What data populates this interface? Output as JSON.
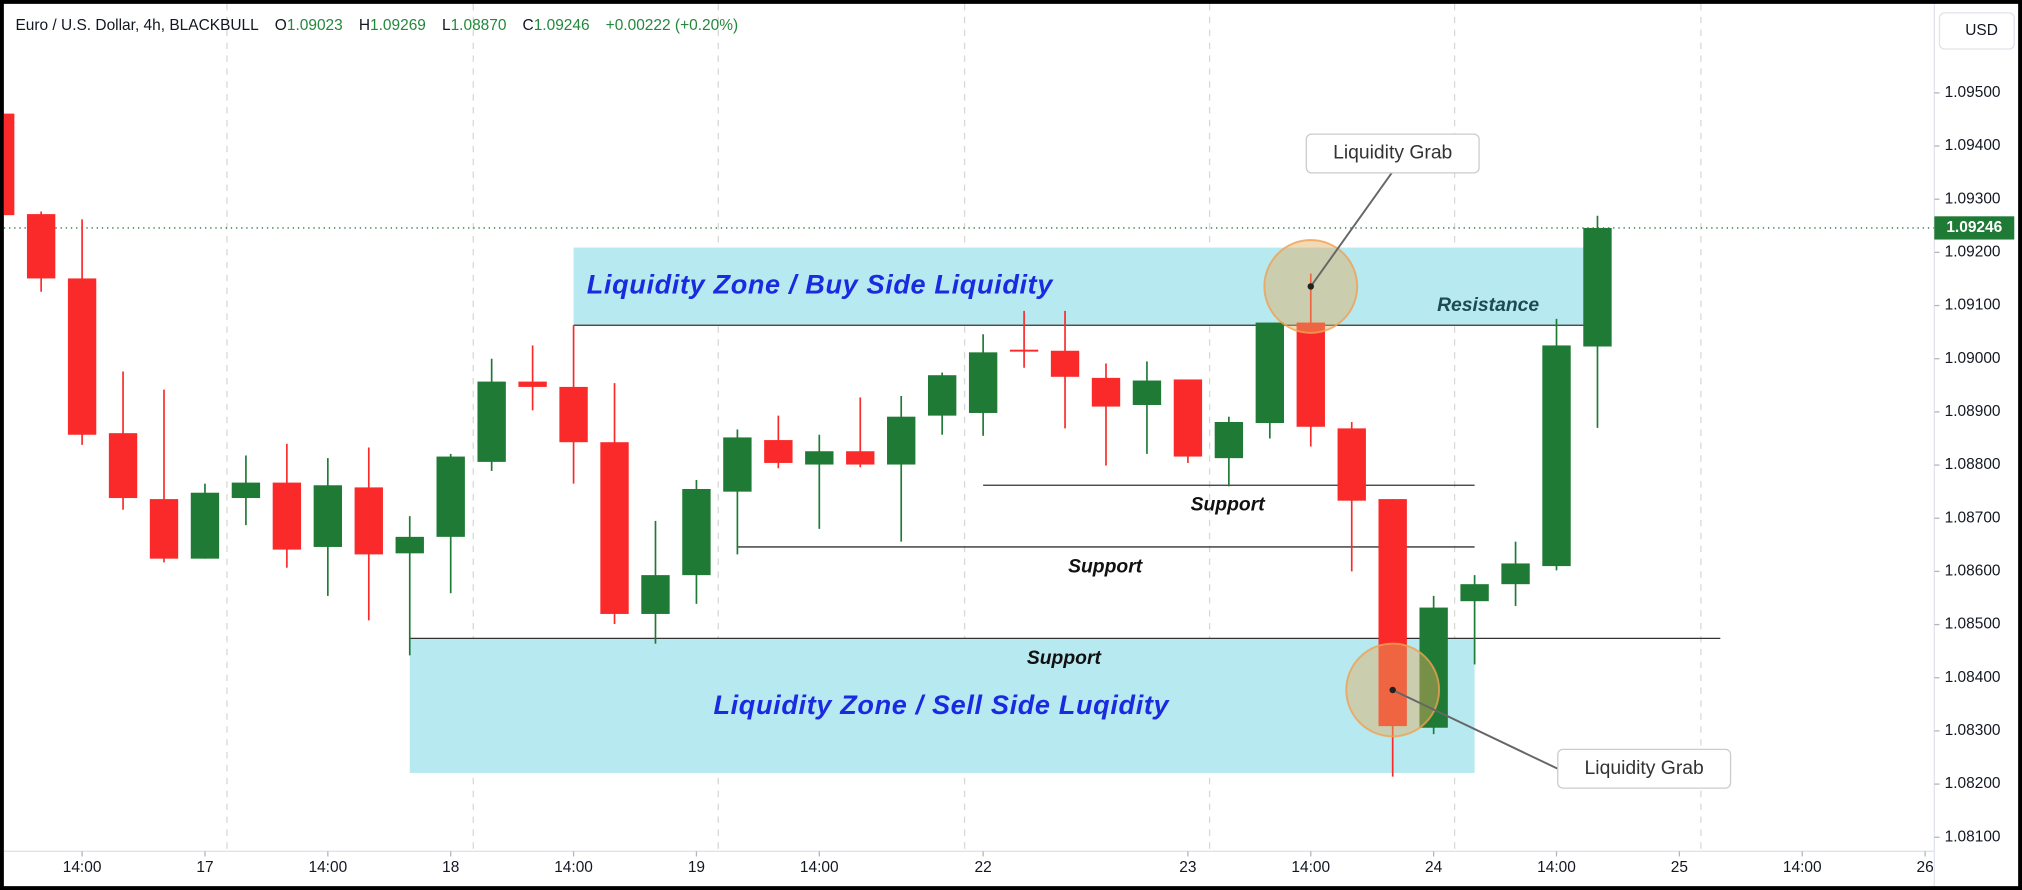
{
  "header": {
    "symbol": "Euro / U.S. Dollar, 4h, BLACKBULL",
    "ohlc": [
      {
        "key": "O",
        "value": "1.09023"
      },
      {
        "key": "H",
        "value": "1.09269"
      },
      {
        "key": "L",
        "value": "1.08870"
      },
      {
        "key": "C",
        "value": "1.09246"
      }
    ],
    "change": "+0.00222 (+0.20%)"
  },
  "currency_button": "USD",
  "chart_data": {
    "type": "candlestick",
    "up_color": "#1e7a34",
    "down_color": "#fa2a2a",
    "candles": [
      {
        "o": 1.09461,
        "h": 1.09461,
        "l": 1.0927,
        "c": 1.0927
      },
      {
        "o": 1.09272,
        "h": 1.09277,
        "l": 1.09126,
        "c": 1.09151
      },
      {
        "o": 1.09151,
        "h": 1.09262,
        "l": 1.08838,
        "c": 1.08857
      },
      {
        "o": 1.0886,
        "h": 1.08976,
        "l": 1.08716,
        "c": 1.08738
      },
      {
        "o": 1.08736,
        "h": 1.08942,
        "l": 1.08617,
        "c": 1.08624
      },
      {
        "o": 1.08624,
        "h": 1.08765,
        "l": 1.08624,
        "c": 1.08748
      },
      {
        "o": 1.08738,
        "h": 1.08818,
        "l": 1.08687,
        "c": 1.08767
      },
      {
        "o": 1.08767,
        "h": 1.0884,
        "l": 1.08607,
        "c": 1.08641
      },
      {
        "o": 1.08646,
        "h": 1.08813,
        "l": 1.08554,
        "c": 1.08762
      },
      {
        "o": 1.08758,
        "h": 1.08833,
        "l": 1.08508,
        "c": 1.08632
      },
      {
        "o": 1.08634,
        "h": 1.08704,
        "l": 1.08442,
        "c": 1.08665
      },
      {
        "o": 1.08665,
        "h": 1.08821,
        "l": 1.08559,
        "c": 1.08816
      },
      {
        "o": 1.08806,
        "h": 1.09,
        "l": 1.08789,
        "c": 1.08957
      },
      {
        "o": 1.08957,
        "h": 1.09025,
        "l": 1.08903,
        "c": 1.08947
      },
      {
        "o": 1.08947,
        "h": 1.09063,
        "l": 1.08765,
        "c": 1.08843
      },
      {
        "o": 1.08843,
        "h": 1.08954,
        "l": 1.08501,
        "c": 1.0852
      },
      {
        "o": 1.0852,
        "h": 1.08695,
        "l": 1.08464,
        "c": 1.08593
      },
      {
        "o": 1.08593,
        "h": 1.08772,
        "l": 1.08539,
        "c": 1.08755
      },
      {
        "o": 1.0875,
        "h": 1.08867,
        "l": 1.08632,
        "c": 1.08852
      },
      {
        "o": 1.08847,
        "h": 1.08893,
        "l": 1.08794,
        "c": 1.08804
      },
      {
        "o": 1.08801,
        "h": 1.08857,
        "l": 1.0868,
        "c": 1.08826
      },
      {
        "o": 1.08826,
        "h": 1.08927,
        "l": 1.08796,
        "c": 1.08801
      },
      {
        "o": 1.08801,
        "h": 1.0893,
        "l": 1.08656,
        "c": 1.08891
      },
      {
        "o": 1.08893,
        "h": 1.08974,
        "l": 1.08857,
        "c": 1.08969
      },
      {
        "o": 1.08898,
        "h": 1.09046,
        "l": 1.08855,
        "c": 1.09012
      },
      {
        "o": 1.09017,
        "h": 1.0909,
        "l": 1.08983,
        "c": 1.09015
      },
      {
        "o": 1.09015,
        "h": 1.0909,
        "l": 1.08869,
        "c": 1.08966
      },
      {
        "o": 1.08964,
        "h": 1.08991,
        "l": 1.08799,
        "c": 1.0891
      },
      {
        "o": 1.08913,
        "h": 1.08995,
        "l": 1.08821,
        "c": 1.08959
      },
      {
        "o": 1.08961,
        "h": 1.08961,
        "l": 1.08804,
        "c": 1.08816
      },
      {
        "o": 1.08813,
        "h": 1.08891,
        "l": 1.0876,
        "c": 1.08881
      },
      {
        "o": 1.08879,
        "h": 1.09068,
        "l": 1.0885,
        "c": 1.09068
      },
      {
        "o": 1.09068,
        "h": 1.0916,
        "l": 1.08835,
        "c": 1.08872
      },
      {
        "o": 1.08869,
        "h": 1.08881,
        "l": 1.086,
        "c": 1.08733
      },
      {
        "o": 1.08736,
        "h": 1.08736,
        "l": 1.08214,
        "c": 1.08309
      },
      {
        "o": 1.08306,
        "h": 1.08554,
        "l": 1.08294,
        "c": 1.08532
      },
      {
        "o": 1.08544,
        "h": 1.08593,
        "l": 1.08425,
        "c": 1.08576
      },
      {
        "o": 1.08576,
        "h": 1.08656,
        "l": 1.08535,
        "c": 1.08615
      },
      {
        "o": 1.0861,
        "h": 1.09075,
        "l": 1.08602,
        "c": 1.09025
      },
      {
        "o": 1.09023,
        "h": 1.09269,
        "l": 1.0887,
        "c": 1.09246
      }
    ],
    "xlim": [
      0.09,
      47.13
    ],
    "xticks": [
      {
        "value": 2,
        "label": "14:00"
      },
      {
        "value": 5,
        "label": "17"
      },
      {
        "value": 8,
        "label": "14:00"
      },
      {
        "value": 11,
        "label": "18"
      },
      {
        "value": 14,
        "label": "14:00"
      },
      {
        "value": 17,
        "label": "19"
      },
      {
        "value": 20,
        "label": "14:00"
      },
      {
        "value": 24,
        "label": "22"
      },
      {
        "value": 29,
        "label": "23"
      },
      {
        "value": 32,
        "label": "14:00"
      },
      {
        "value": 35,
        "label": "24"
      },
      {
        "value": 38,
        "label": "14:00"
      },
      {
        "value": 41,
        "label": "25"
      },
      {
        "value": 44,
        "label": "14:00"
      },
      {
        "value": 47,
        "label": "26"
      }
    ],
    "ylim": [
      1.0806,
      1.0967
    ],
    "yticks": [
      {
        "value": 1.081,
        "label": "1.08100"
      },
      {
        "value": 1.082,
        "label": "1.08200"
      },
      {
        "value": 1.083,
        "label": "1.08300"
      },
      {
        "value": 1.084,
        "label": "1.08400"
      },
      {
        "value": 1.085,
        "label": "1.08500"
      },
      {
        "value": 1.086,
        "label": "1.08600"
      },
      {
        "value": 1.087,
        "label": "1.08700"
      },
      {
        "value": 1.088,
        "label": "1.08800"
      },
      {
        "value": 1.089,
        "label": "1.08900"
      },
      {
        "value": 1.09,
        "label": "1.09000"
      },
      {
        "value": 1.091,
        "label": "1.09100"
      },
      {
        "value": 1.092,
        "label": "1.09200"
      },
      {
        "value": 1.093,
        "label": "1.09300"
      },
      {
        "value": 1.094,
        "label": "1.09400"
      },
      {
        "value": 1.095,
        "label": "1.09500"
      }
    ],
    "last_price": 1.09246,
    "zones": [
      {
        "label": "Liquidity Zone / Buy Side Liquidity",
        "top": 1.09209,
        "bottom": 1.09063,
        "x": [
          14,
          38.66
        ]
      },
      {
        "label": "Liquidity Zone / Sell Side Luqidity",
        "top": 1.08474,
        "bottom": 1.08221,
        "x": [
          10,
          36
        ]
      }
    ],
    "levels": [
      {
        "label": "Resistance",
        "value": 1.09063,
        "x": [
          14,
          38.66
        ]
      },
      {
        "label": "Support",
        "value": 1.08762,
        "x": [
          24,
          36
        ]
      },
      {
        "label": "Support",
        "value": 1.08646,
        "x": [
          18,
          36
        ]
      },
      {
        "label": "Support",
        "value": 1.08474,
        "x": [
          10,
          42
        ]
      }
    ],
    "grabs": [
      {
        "label": "Liquidity Grab",
        "x": 32,
        "price": 1.09136
      },
      {
        "label": "Liquidity Grab",
        "x": 34,
        "price": 1.08377
      }
    ]
  }
}
